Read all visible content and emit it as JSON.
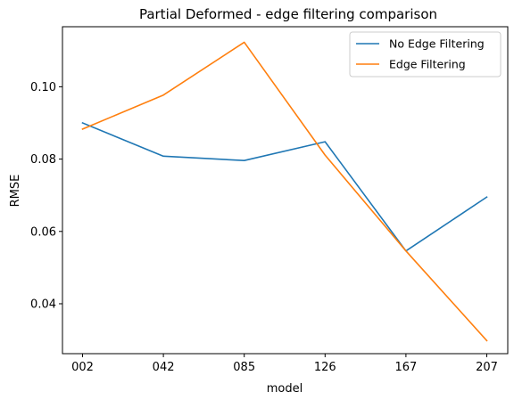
{
  "chart_data": {
    "type": "line",
    "title": "Partial Deformed - edge filtering comparison",
    "xlabel": "model",
    "ylabel": "RMSE",
    "categories": [
      "002",
      "042",
      "085",
      "126",
      "167",
      "207"
    ],
    "ylim": [
      0.0262,
      0.1166
    ],
    "yticks": [
      0.04,
      0.06,
      0.08,
      0.1
    ],
    "ytick_labels": [
      "0.04",
      "0.06",
      "0.08",
      "0.10"
    ],
    "grid": false,
    "legend_position": "top-right",
    "series": [
      {
        "name": "No Edge Filtering",
        "color": "#1f77b4",
        "values": [
          0.09,
          0.0808,
          0.0796,
          0.0848,
          0.0546,
          0.0695
        ]
      },
      {
        "name": "Edge Filtering",
        "color": "#ff7f0e",
        "values": [
          0.0883,
          0.0977,
          0.1123,
          0.0811,
          0.0546,
          0.0298
        ]
      }
    ]
  }
}
